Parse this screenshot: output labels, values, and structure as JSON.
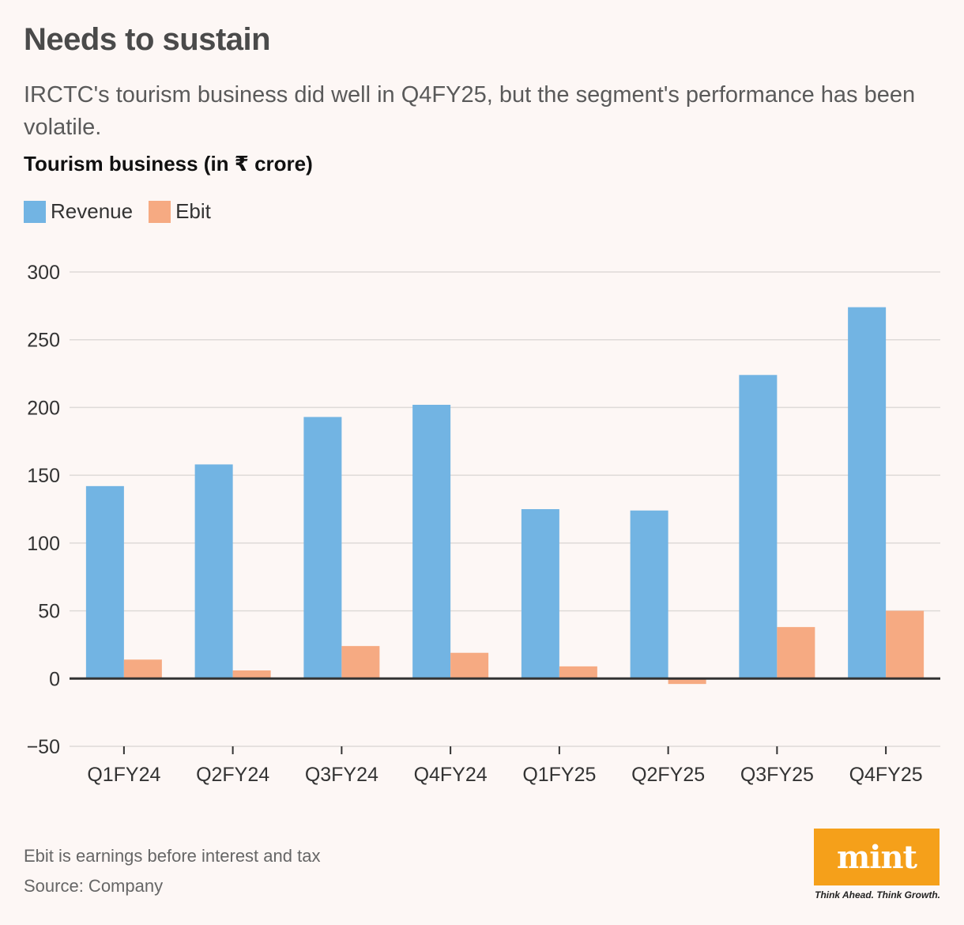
{
  "header": {
    "title": "Needs to sustain",
    "subtitle": "IRCTC's tourism business did well in Q4FY25, but the segment's performance has been volatile."
  },
  "chart_data": {
    "type": "bar",
    "title": "Tourism business (in ₹ crore)",
    "categories": [
      "Q1FY24",
      "Q2FY24",
      "Q3FY24",
      "Q4FY24",
      "Q1FY25",
      "Q2FY25",
      "Q3FY25",
      "Q4FY25"
    ],
    "series": [
      {
        "name": "Revenue",
        "color": "#72b4e3",
        "values": [
          142,
          158,
          193,
          202,
          125,
          124,
          224,
          274
        ]
      },
      {
        "name": "Ebit",
        "color": "#f6aa82",
        "values": [
          14,
          6,
          24,
          19,
          9,
          -4,
          38,
          50
        ]
      }
    ],
    "ylim": [
      -50,
      300
    ],
    "yticks": [
      300,
      250,
      200,
      150,
      100,
      50,
      0,
      -50
    ],
    "ytick_labels": [
      "300",
      "250",
      "200",
      "150",
      "100",
      "50",
      "0",
      "−50"
    ],
    "xlabel": "",
    "ylabel": "",
    "grid": true,
    "legend": "top-left"
  },
  "footer": {
    "note": "Ebit is earnings before interest and tax",
    "source": "Source: Company",
    "logo_text": "mint",
    "tagline": "Think Ahead. Think Growth."
  },
  "colors": {
    "revenue": "#72b4e3",
    "ebit": "#f6aa82",
    "logo_bg": "#f5a01a",
    "background": "#fdf7f5"
  }
}
